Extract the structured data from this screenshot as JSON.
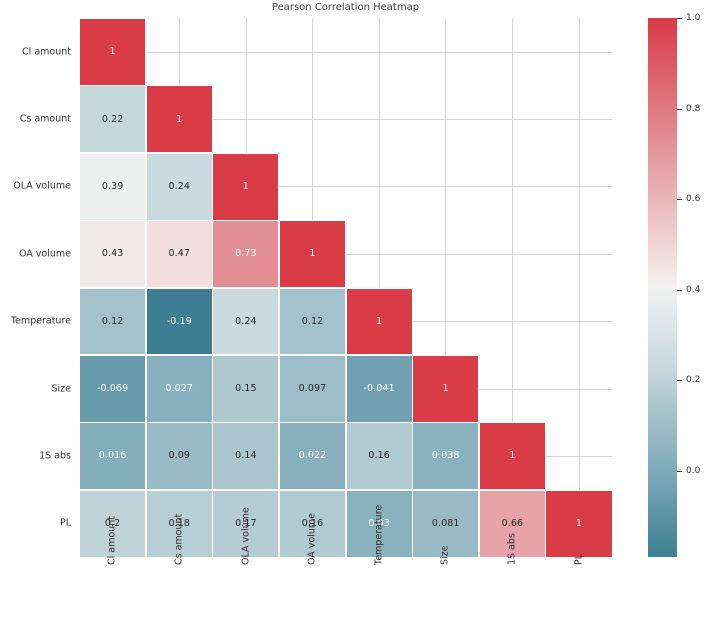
{
  "chart_data": {
    "type": "heatmap",
    "title": "Pearson Correlation Heatmap",
    "categories": [
      "Cl amount",
      "Cs amount",
      "OLA volume",
      "OA volume",
      "Temperature",
      "Size",
      "1S abs",
      "PL"
    ],
    "mask": "upper-triangle-hidden",
    "rows": [
      {
        "name": "Cl amount",
        "values": [
          1
        ],
        "labels": [
          "1"
        ]
      },
      {
        "name": "Cs amount",
        "values": [
          0.22,
          1
        ],
        "labels": [
          "0.22",
          "1"
        ]
      },
      {
        "name": "OLA volume",
        "values": [
          0.39,
          0.24,
          1
        ],
        "labels": [
          "0.39",
          "0.24",
          "1"
        ]
      },
      {
        "name": "OA volume",
        "values": [
          0.43,
          0.47,
          0.73,
          1
        ],
        "labels": [
          "0.43",
          "0.47",
          "0.73",
          "1"
        ]
      },
      {
        "name": "Temperature",
        "values": [
          0.12,
          -0.19,
          0.24,
          0.12,
          1
        ],
        "labels": [
          "0.12",
          "-0.19",
          "0.24",
          "0.12",
          "1"
        ]
      },
      {
        "name": "Size",
        "values": [
          -0.069,
          0.027,
          0.15,
          0.097,
          -0.041,
          1
        ],
        "labels": [
          "-0.069",
          "0.027",
          "0.15",
          "0.097",
          "-0.041",
          "1"
        ]
      },
      {
        "name": "1S abs",
        "values": [
          0.016,
          0.09,
          0.14,
          0.022,
          0.16,
          0.038,
          1
        ],
        "labels": [
          "0.016",
          "0.09",
          "0.14",
          "0.022",
          "0.16",
          "0.038",
          "1"
        ]
      },
      {
        "name": "PL",
        "values": [
          0.2,
          0.18,
          0.17,
          0.16,
          0.03,
          0.081,
          0.66,
          1
        ],
        "labels": [
          "0.2",
          "0.18",
          "0.17",
          "0.16",
          "0.03",
          "0.081",
          "0.66",
          "1"
        ]
      }
    ],
    "colorbar": {
      "vmin": -0.19,
      "vmax": 1.0,
      "tick_labels": [
        "1.0",
        "0.8",
        "0.6",
        "0.4",
        "0.2",
        "0.0"
      ]
    },
    "colormap": {
      "name": "diverging-teal-white-red",
      "stops": [
        [
          -0.19,
          "#3d7e92"
        ],
        [
          0.016,
          "#85aebc"
        ],
        [
          0.12,
          "#a3c1cb"
        ],
        [
          0.22,
          "#c6d7dc"
        ],
        [
          0.405,
          "#f2f1f1"
        ],
        [
          0.47,
          "#f2dede"
        ],
        [
          0.66,
          "#e6a4a9"
        ],
        [
          0.73,
          "#e28e94"
        ],
        [
          1.0,
          "#d93b47"
        ]
      ],
      "text_dark": "#262626",
      "text_light": "#ffffff",
      "luma_threshold": 176
    },
    "grid": {
      "show": true,
      "color": "#d4d4d4",
      "position": "cell-centers"
    },
    "legend_position": "right-colorbar",
    "xlabel": "",
    "ylabel": ""
  }
}
